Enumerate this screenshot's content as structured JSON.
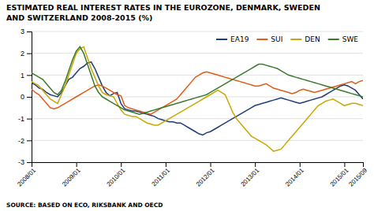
{
  "chart_data": {
    "type": "line",
    "title": "ESTIMATED REAL INTEREST RATES IN THE EUROZONE, DENMARK, SWEDEN",
    "subtitle": "AND SWITZERLAND 2008-2015 (%)",
    "annotations": [
      "SOURCE: BASED ON ECO, RIKSBANK AND OECD"
    ],
    "categories": [
      "2008/01",
      null,
      null,
      null,
      null,
      null,
      null,
      null,
      null,
      null,
      null,
      null,
      "2009/01",
      null,
      null,
      null,
      null,
      null,
      null,
      null,
      null,
      null,
      null,
      null,
      "2010/01",
      null,
      null,
      null,
      null,
      null,
      null,
      null,
      null,
      null,
      null,
      null,
      "2011/01",
      null,
      null,
      null,
      null,
      null,
      null,
      null,
      null,
      null,
      null,
      null,
      "2012/01",
      null,
      null,
      null,
      null,
      null,
      null,
      null,
      null,
      null,
      null,
      null,
      "2013/01",
      null,
      null,
      null,
      null,
      null,
      null,
      null,
      null,
      null,
      null,
      null,
      "2014/01",
      null,
      null,
      null,
      null,
      null,
      null,
      null,
      null,
      null,
      null,
      null,
      "2015/01",
      null,
      null,
      null,
      null,
      "2015/09"
    ],
    "series": [
      {
        "name": "EA19",
        "color": "#1f3d7a",
        "values": [
          0.65,
          0.55,
          0.4,
          0.35,
          0.2,
          0.1,
          0.05,
          0.0,
          0.2,
          0.5,
          0.8,
          0.9,
          1.1,
          1.3,
          1.4,
          1.55,
          1.6,
          1.3,
          0.9,
          0.5,
          0.2,
          0.05,
          0.15,
          0.2,
          -0.3,
          -0.55,
          -0.6,
          -0.65,
          -0.65,
          -0.7,
          -0.75,
          -0.8,
          -0.85,
          -0.9,
          -1.0,
          -1.05,
          -1.1,
          -1.15,
          -1.15,
          -1.2,
          -1.2,
          -1.3,
          -1.4,
          -1.5,
          -1.6,
          -1.7,
          -1.75,
          -1.65,
          -1.6,
          -1.5,
          -1.4,
          -1.3,
          -1.2,
          -1.1,
          -1.0,
          -0.9,
          -0.8,
          -0.7,
          -0.6,
          -0.5,
          -0.4,
          -0.35,
          -0.3,
          -0.25,
          -0.2,
          -0.15,
          -0.1,
          -0.05,
          -0.1,
          -0.15,
          -0.2,
          -0.25,
          -0.3,
          -0.25,
          -0.2,
          -0.15,
          -0.1,
          -0.05,
          0.0,
          0.1,
          0.2,
          0.3,
          0.4,
          0.5,
          0.55,
          0.5,
          0.4,
          0.3,
          0.1,
          -0.1
        ]
      },
      {
        "name": "SUI",
        "color": "#e05c1a",
        "values": [
          0.35,
          0.2,
          0.1,
          -0.1,
          -0.3,
          -0.5,
          -0.55,
          -0.5,
          -0.4,
          -0.3,
          -0.2,
          -0.1,
          0.0,
          0.1,
          0.2,
          0.3,
          0.4,
          0.5,
          0.55,
          0.5,
          0.4,
          0.3,
          0.2,
          0.1,
          0.05,
          -0.4,
          -0.5,
          -0.55,
          -0.6,
          -0.65,
          -0.7,
          -0.75,
          -0.8,
          -0.7,
          -0.6,
          -0.5,
          -0.4,
          -0.3,
          -0.2,
          -0.1,
          0.1,
          0.3,
          0.5,
          0.7,
          0.9,
          1.0,
          1.1,
          1.15,
          1.1,
          1.05,
          1.0,
          0.95,
          0.9,
          0.85,
          0.8,
          0.75,
          0.7,
          0.65,
          0.6,
          0.55,
          0.5,
          0.5,
          0.55,
          0.6,
          0.5,
          0.4,
          0.35,
          0.3,
          0.25,
          0.2,
          0.15,
          0.2,
          0.3,
          0.35,
          0.3,
          0.25,
          0.2,
          0.25,
          0.3,
          0.35,
          0.4,
          0.45,
          0.5,
          0.55,
          0.6,
          0.65,
          0.7,
          0.6,
          0.7,
          0.75
        ]
      },
      {
        "name": "DEN",
        "color": "#c8a800",
        "values": [
          0.7,
          0.6,
          0.5,
          0.3,
          0.1,
          -0.1,
          -0.2,
          -0.3,
          0.1,
          0.5,
          1.0,
          1.5,
          2.0,
          2.2,
          2.3,
          1.8,
          1.3,
          0.9,
          0.5,
          0.2,
          0.1,
          0.05,
          0.0,
          -0.3,
          -0.6,
          -0.8,
          -0.85,
          -0.9,
          -0.9,
          -1.0,
          -1.1,
          -1.2,
          -1.25,
          -1.3,
          -1.3,
          -1.2,
          -1.1,
          -1.0,
          -0.9,
          -0.8,
          -0.7,
          -0.6,
          -0.5,
          -0.4,
          -0.3,
          -0.2,
          -0.1,
          0.0,
          0.1,
          0.2,
          0.3,
          0.2,
          0.1,
          -0.3,
          -0.7,
          -1.0,
          -1.2,
          -1.4,
          -1.6,
          -1.8,
          -1.9,
          -2.0,
          -2.1,
          -2.2,
          -2.35,
          -2.5,
          -2.45,
          -2.4,
          -2.2,
          -2.0,
          -1.8,
          -1.6,
          -1.4,
          -1.2,
          -1.0,
          -0.8,
          -0.6,
          -0.4,
          -0.3,
          -0.2,
          -0.15,
          -0.1,
          -0.2,
          -0.3,
          -0.4,
          -0.35,
          -0.3,
          -0.3,
          -0.35,
          -0.4
        ]
      },
      {
        "name": "SWE",
        "color": "#3a7a2a",
        "values": [
          1.1,
          1.0,
          0.9,
          0.8,
          0.6,
          0.4,
          0.2,
          0.1,
          0.3,
          0.7,
          1.2,
          1.7,
          2.1,
          2.3,
          2.0,
          1.5,
          1.0,
          0.5,
          0.2,
          0.0,
          -0.1,
          -0.2,
          -0.3,
          -0.4,
          -0.5,
          -0.6,
          -0.65,
          -0.7,
          -0.75,
          -0.8,
          -0.75,
          -0.7,
          -0.65,
          -0.6,
          -0.55,
          -0.5,
          -0.45,
          -0.4,
          -0.35,
          -0.3,
          -0.25,
          -0.2,
          -0.15,
          -0.1,
          -0.05,
          0.0,
          0.05,
          0.1,
          0.2,
          0.3,
          0.4,
          0.5,
          0.6,
          0.7,
          0.8,
          0.9,
          1.0,
          1.1,
          1.2,
          1.3,
          1.4,
          1.5,
          1.5,
          1.45,
          1.4,
          1.35,
          1.3,
          1.2,
          1.1,
          1.0,
          0.95,
          0.9,
          0.85,
          0.8,
          0.75,
          0.7,
          0.65,
          0.6,
          0.55,
          0.5,
          0.45,
          0.4,
          0.35,
          0.3,
          0.25,
          0.2,
          0.15,
          0.1,
          0.05,
          0.0
        ]
      }
    ],
    "ylim": [
      -3,
      3
    ],
    "yticks": [
      -3,
      -2,
      -1,
      0,
      1,
      2,
      3
    ],
    "grid": true,
    "legend": "top-right"
  }
}
